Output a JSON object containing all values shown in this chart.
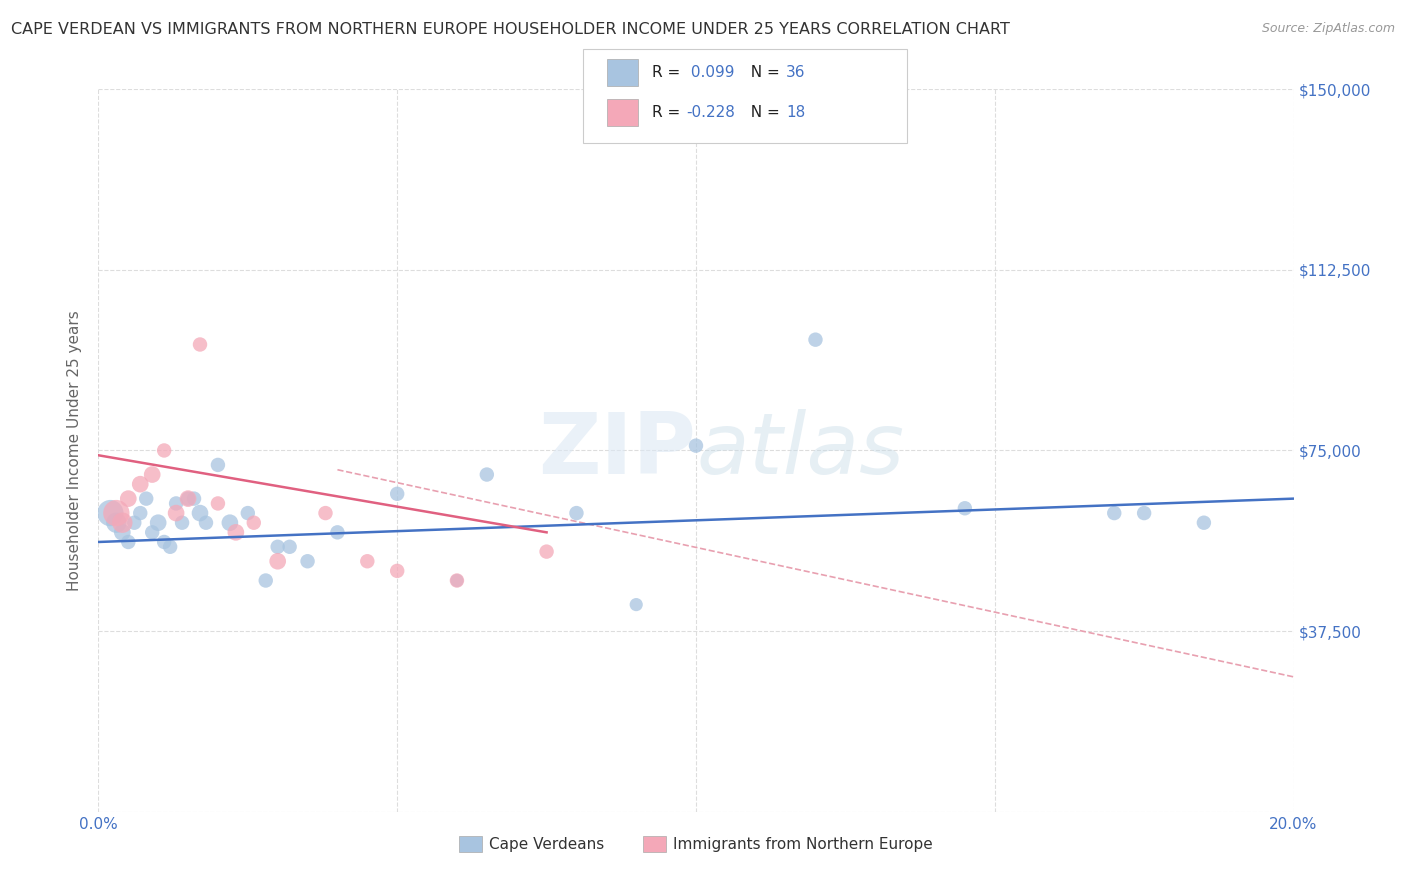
{
  "title": "CAPE VERDEAN VS IMMIGRANTS FROM NORTHERN EUROPE HOUSEHOLDER INCOME UNDER 25 YEARS CORRELATION CHART",
  "source": "Source: ZipAtlas.com",
  "ylabel": "Householder Income Under 25 years",
  "xlim": [
    0.0,
    0.2
  ],
  "ylim": [
    0,
    150000
  ],
  "yticks": [
    0,
    37500,
    75000,
    112500,
    150000
  ],
  "ytick_labels": [
    "",
    "$37,500",
    "$75,000",
    "$112,500",
    "$150,000"
  ],
  "xticks": [
    0.0,
    0.05,
    0.1,
    0.15,
    0.2
  ],
  "blue_R": 0.099,
  "blue_N": 36,
  "pink_R": -0.228,
  "pink_N": 18,
  "blue_color": "#a8c4e0",
  "pink_color": "#f4a8b8",
  "blue_line_color": "#4472c4",
  "pink_line_color": "#e06080",
  "legend_label_blue": "Cape Verdeans",
  "legend_label_pink": "Immigrants from Northern Europe",
  "blue_line_x0": 0.0,
  "blue_line_y0": 56000,
  "blue_line_x1": 0.2,
  "blue_line_y1": 65000,
  "pink_line_x0": 0.0,
  "pink_line_y0": 74000,
  "pink_line_x1": 0.075,
  "pink_line_y1": 58000,
  "gray_line_x0": 0.04,
  "gray_line_y0": 71000,
  "gray_line_x1": 0.2,
  "gray_line_y1": 28000,
  "blue_scatter_x": [
    0.002,
    0.003,
    0.004,
    0.005,
    0.006,
    0.007,
    0.008,
    0.009,
    0.01,
    0.011,
    0.012,
    0.013,
    0.014,
    0.015,
    0.016,
    0.017,
    0.018,
    0.02,
    0.022,
    0.025,
    0.028,
    0.03,
    0.032,
    0.035,
    0.04,
    0.05,
    0.06,
    0.065,
    0.08,
    0.09,
    0.1,
    0.12,
    0.145,
    0.17,
    0.175,
    0.185
  ],
  "blue_scatter_y": [
    62000,
    60000,
    58000,
    56000,
    60000,
    62000,
    65000,
    58000,
    60000,
    56000,
    55000,
    64000,
    60000,
    65000,
    65000,
    62000,
    60000,
    72000,
    60000,
    62000,
    48000,
    55000,
    55000,
    52000,
    58000,
    66000,
    48000,
    70000,
    62000,
    43000,
    76000,
    98000,
    63000,
    62000,
    62000,
    60000
  ],
  "blue_scatter_size": [
    200,
    120,
    80,
    60,
    60,
    60,
    60,
    60,
    80,
    60,
    60,
    60,
    60,
    60,
    60,
    80,
    60,
    60,
    80,
    60,
    60,
    60,
    60,
    60,
    60,
    60,
    50,
    60,
    60,
    50,
    60,
    60,
    60,
    60,
    60,
    60
  ],
  "pink_scatter_x": [
    0.003,
    0.004,
    0.005,
    0.007,
    0.009,
    0.011,
    0.013,
    0.015,
    0.017,
    0.02,
    0.023,
    0.026,
    0.03,
    0.038,
    0.045,
    0.05,
    0.06,
    0.075
  ],
  "pink_scatter_y": [
    62000,
    60000,
    65000,
    68000,
    70000,
    75000,
    62000,
    65000,
    97000,
    64000,
    58000,
    60000,
    52000,
    62000,
    52000,
    50000,
    48000,
    54000
  ],
  "pink_scatter_size": [
    200,
    120,
    80,
    80,
    80,
    60,
    80,
    80,
    60,
    60,
    80,
    60,
    80,
    60,
    60,
    60,
    60,
    60
  ],
  "background_color": "#ffffff",
  "grid_color": "#dddddd",
  "title_color": "#333333",
  "axis_label_color": "#666666",
  "tick_color_right": "#4472c4",
  "tick_color_bottom": "#4472c4"
}
